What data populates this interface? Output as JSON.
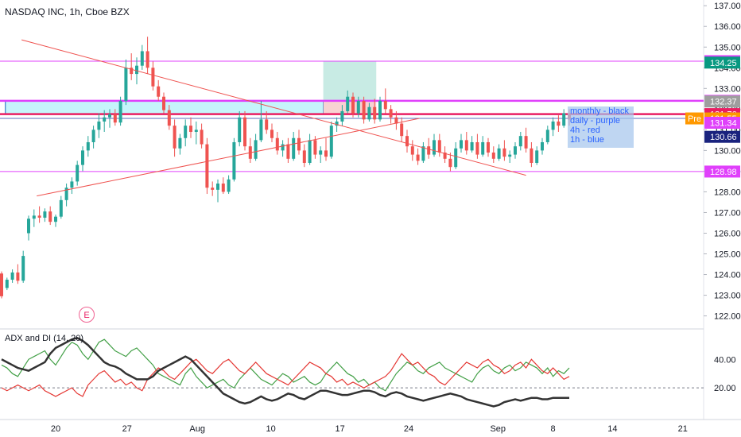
{
  "header": {
    "symbol_title": "NASDAQ INC, 1h, Cboe BZX"
  },
  "indicator": {
    "title": "ADX and DI (14, 20)"
  },
  "notes": {
    "lines": [
      "monthly - black",
      "daily - purple",
      "4h - red",
      "1h - blue"
    ]
  },
  "earnings_marker": "E",
  "colors": {
    "up": "#26a69a",
    "down": "#ef5350",
    "magenta": "#e040fb",
    "blue_line": "#5c6bc0",
    "trend": "#ef5350",
    "zone": "#b3f0fa",
    "target": "#c8ebe4",
    "stop": "#f8d2d2",
    "di_plus": "#43a047",
    "di_minus": "#e53935",
    "adx": "#333333"
  },
  "chart_data": {
    "type": "candlestick",
    "y_axis": {
      "range": [
        121.6,
        137.2
      ],
      "ticks": [
        "122.00",
        "123.00",
        "124.00",
        "125.00",
        "126.00",
        "127.00",
        "128.00",
        "129.00",
        "130.00",
        "131.00",
        "132.00",
        "133.00",
        "134.00",
        "135.00",
        "136.00",
        "137.00"
      ]
    },
    "x_axis": {
      "ticks": [
        "20",
        "27",
        "Aug",
        "10",
        "17",
        "24",
        "Sep",
        "8",
        "14",
        "21"
      ]
    },
    "price_labels": [
      {
        "value": "134.32",
        "color": "#e040fb"
      },
      {
        "value": "134.25",
        "color": "#089981"
      },
      {
        "value": "132.40",
        "color": "#e040fb"
      },
      {
        "value": "132.37",
        "color": "#9e9e9e"
      },
      {
        "value": "131.76",
        "color": "#e91e63"
      },
      {
        "value": "131.55",
        "color": "#089981"
      },
      {
        "value": "131.55",
        "color": "#ff9800",
        "prefix": "Pre"
      },
      {
        "value": "131.34",
        "color": "#e040fb"
      },
      {
        "value": "130.66",
        "color": "#1a237e"
      },
      {
        "value": "128.98",
        "color": "#e040fb"
      }
    ],
    "horizontal_levels": [
      {
        "price": 134.32,
        "color": "#e040fb",
        "width": 1
      },
      {
        "price": 132.4,
        "color": "#e040fb",
        "width": 2.5
      },
      {
        "price": 131.76,
        "color": "#e91e63",
        "width": 2.5
      },
      {
        "price": 131.55,
        "color": "#5c6bc0",
        "width": 1
      },
      {
        "price": 128.98,
        "color": "#e040fb",
        "width": 1
      }
    ],
    "zone": {
      "from_time": 0.7,
      "to_time": 59.5,
      "high": 132.4,
      "low": 131.76
    },
    "position": {
      "from_time": 59.5,
      "to_time": 69.3,
      "target": 134.32,
      "entry": 132.37,
      "stop": 131.76,
      "current": 131.55
    },
    "trendlines": [
      {
        "from": [
          3.7,
          135.35
        ],
        "to": [
          97,
          128.8
        ]
      },
      {
        "from": [
          6.5,
          127.8
        ],
        "to": [
          77.3,
          131.55
        ]
      }
    ],
    "candles": [
      [
        124.05,
        124.15,
        122.85,
        122.95
      ],
      [
        123.35,
        123.85,
        123.25,
        123.75
      ],
      [
        123.75,
        124.25,
        123.6,
        124.1
      ],
      [
        124.1,
        124.5,
        123.55,
        123.7
      ],
      [
        123.7,
        125.15,
        123.6,
        124.9
      ],
      [
        126.0,
        126.85,
        125.65,
        126.7
      ],
      [
        126.7,
        127.15,
        126.3,
        126.85
      ],
      [
        126.85,
        127.3,
        126.5,
        126.75
      ],
      [
        126.75,
        127.2,
        126.55,
        127.05
      ],
      [
        127.05,
        127.3,
        126.4,
        126.55
      ],
      [
        126.55,
        126.9,
        126.3,
        126.8
      ],
      [
        126.8,
        127.8,
        126.7,
        127.6
      ],
      [
        127.6,
        128.4,
        127.3,
        128.2
      ],
      [
        128.2,
        128.7,
        127.9,
        128.5
      ],
      [
        128.5,
        129.5,
        128.3,
        129.3
      ],
      [
        129.3,
        130.2,
        129.0,
        130.0
      ],
      [
        130.0,
        130.7,
        129.7,
        130.4
      ],
      [
        130.4,
        131.2,
        130.1,
        131.0
      ],
      [
        131.0,
        131.8,
        130.6,
        131.4
      ],
      [
        131.4,
        131.95,
        130.9,
        131.6
      ],
      [
        131.6,
        132.0,
        131.1,
        131.75
      ],
      [
        131.75,
        132.0,
        131.2,
        131.35
      ],
      [
        131.35,
        132.6,
        131.2,
        132.4
      ],
      [
        132.4,
        134.4,
        132.2,
        134.0
      ],
      [
        134.0,
        134.7,
        133.4,
        133.7
      ],
      [
        133.7,
        134.5,
        133.2,
        134.1
      ],
      [
        134.1,
        135.1,
        133.9,
        134.8
      ],
      [
        134.8,
        135.5,
        133.7,
        134.0
      ],
      [
        134.0,
        134.3,
        132.9,
        133.1
      ],
      [
        133.1,
        133.4,
        132.4,
        132.6
      ],
      [
        132.6,
        132.8,
        131.8,
        131.95
      ],
      [
        131.95,
        132.2,
        131.0,
        131.2
      ],
      [
        131.2,
        131.5,
        129.7,
        130.1
      ],
      [
        130.1,
        130.8,
        129.8,
        130.6
      ],
      [
        130.6,
        131.5,
        130.2,
        131.2
      ],
      [
        131.2,
        131.6,
        130.6,
        130.9
      ],
      [
        130.9,
        131.4,
        130.3,
        131.0
      ],
      [
        131.0,
        131.3,
        130.1,
        130.3
      ],
      [
        130.3,
        130.6,
        127.9,
        128.2
      ],
      [
        128.2,
        128.5,
        127.8,
        128.1
      ],
      [
        128.1,
        128.6,
        127.5,
        128.4
      ],
      [
        128.4,
        128.7,
        127.9,
        128.0
      ],
      [
        128.0,
        128.8,
        127.9,
        128.6
      ],
      [
        128.6,
        130.6,
        128.5,
        130.4
      ],
      [
        130.4,
        131.9,
        130.2,
        131.6
      ],
      [
        131.6,
        131.9,
        130.0,
        130.2
      ],
      [
        130.2,
        130.6,
        129.4,
        129.6
      ],
      [
        129.6,
        130.8,
        129.5,
        130.5
      ],
      [
        130.5,
        132.4,
        130.4,
        131.5
      ],
      [
        131.5,
        131.9,
        130.8,
        131.0
      ],
      [
        131.0,
        131.3,
        130.4,
        130.6
      ],
      [
        130.6,
        130.9,
        129.8,
        130.0
      ],
      [
        130.0,
        130.5,
        129.7,
        130.3
      ],
      [
        130.3,
        130.6,
        129.4,
        129.6
      ],
      [
        129.6,
        130.9,
        129.5,
        130.6
      ],
      [
        130.6,
        131.0,
        129.8,
        130.0
      ],
      [
        130.0,
        130.3,
        129.2,
        129.4
      ],
      [
        129.4,
        130.8,
        129.3,
        130.5
      ],
      [
        130.5,
        130.7,
        129.6,
        129.8
      ],
      [
        129.8,
        130.2,
        129.4,
        130.0
      ],
      [
        130.0,
        130.6,
        129.5,
        129.7
      ],
      [
        129.7,
        131.4,
        129.6,
        131.2
      ],
      [
        131.2,
        131.6,
        130.9,
        131.4
      ],
      [
        131.4,
        132.2,
        131.2,
        131.9
      ],
      [
        131.9,
        132.9,
        131.8,
        132.6
      ],
      [
        132.6,
        132.8,
        131.6,
        131.8
      ],
      [
        131.8,
        132.6,
        131.6,
        132.4
      ],
      [
        132.4,
        132.6,
        131.3,
        131.5
      ],
      [
        131.5,
        132.3,
        131.4,
        132.1
      ],
      [
        132.1,
        132.5,
        131.3,
        131.5
      ],
      [
        131.5,
        132.6,
        131.4,
        132.4
      ],
      [
        132.4,
        133.0,
        131.8,
        132.0
      ],
      [
        132.0,
        132.2,
        131.3,
        131.6
      ],
      [
        131.6,
        131.9,
        131.0,
        131.3
      ],
      [
        131.3,
        131.6,
        130.4,
        130.7
      ],
      [
        130.7,
        131.0,
        129.9,
        130.2
      ],
      [
        130.2,
        130.5,
        129.5,
        129.8
      ],
      [
        129.8,
        130.1,
        129.3,
        129.5
      ],
      [
        129.5,
        130.4,
        129.4,
        130.2
      ],
      [
        130.2,
        130.6,
        129.6,
        129.8
      ],
      [
        129.8,
        130.8,
        129.7,
        130.5
      ],
      [
        130.5,
        130.8,
        129.7,
        129.9
      ],
      [
        129.9,
        130.2,
        129.4,
        129.6
      ],
      [
        129.6,
        129.9,
        129.0,
        129.2
      ],
      [
        129.2,
        130.4,
        129.1,
        130.1
      ],
      [
        130.1,
        130.8,
        129.9,
        130.5
      ],
      [
        130.5,
        130.9,
        129.8,
        130.0
      ],
      [
        130.0,
        130.7,
        129.9,
        130.4
      ],
      [
        130.4,
        130.8,
        129.6,
        129.8
      ],
      [
        129.8,
        130.7,
        129.7,
        130.4
      ],
      [
        130.4,
        130.6,
        129.7,
        129.9
      ],
      [
        129.9,
        130.2,
        129.4,
        129.6
      ],
      [
        129.6,
        130.3,
        129.5,
        130.1
      ],
      [
        130.1,
        130.5,
        129.5,
        129.7
      ],
      [
        129.7,
        130.0,
        129.4,
        129.8
      ],
      [
        129.8,
        130.4,
        129.6,
        130.2
      ],
      [
        130.2,
        130.9,
        130.0,
        130.7
      ],
      [
        130.7,
        131.1,
        129.9,
        130.1
      ],
      [
        130.1,
        130.4,
        129.2,
        129.4
      ],
      [
        129.4,
        130.2,
        129.3,
        130.0
      ],
      [
        130.0,
        130.6,
        129.8,
        130.4
      ],
      [
        130.4,
        131.2,
        130.3,
        131.0
      ],
      [
        131.0,
        131.6,
        130.7,
        131.4
      ],
      [
        131.4,
        131.7,
        130.9,
        131.2
      ],
      [
        131.2,
        132.0,
        131.1,
        131.8
      ],
      [
        131.8,
        132.0,
        131.2,
        131.5
      ]
    ],
    "adx_di": {
      "y_range": [
        0,
        58
      ],
      "reference_level": 20,
      "ticks": [
        "20.00",
        "40.00"
      ],
      "di_plus": [
        36,
        34,
        30,
        28,
        34,
        40,
        42,
        44,
        46,
        40,
        36,
        42,
        48,
        52,
        50,
        44,
        40,
        46,
        52,
        54,
        50,
        46,
        44,
        42,
        46,
        48,
        44,
        40,
        36,
        30,
        28,
        26,
        24,
        22,
        30,
        34,
        28,
        24,
        20,
        22,
        24,
        26,
        22,
        20,
        26,
        30,
        34,
        30,
        26,
        24,
        22,
        26,
        30,
        28,
        24,
        26,
        28,
        24,
        22,
        24,
        30,
        34,
        38,
        34,
        30,
        28,
        24,
        26,
        22,
        24,
        20,
        18,
        24,
        30,
        34,
        38,
        36,
        32,
        30,
        34,
        36,
        38,
        34,
        32,
        30,
        28,
        26,
        24,
        30,
        34,
        36,
        32,
        30,
        34,
        36,
        32,
        34,
        38,
        36,
        34,
        30,
        34,
        28,
        32,
        30,
        34
      ],
      "di_minus": [
        20,
        18,
        20,
        22,
        20,
        18,
        20,
        22,
        18,
        16,
        14,
        16,
        18,
        20,
        16,
        14,
        22,
        26,
        30,
        32,
        28,
        24,
        26,
        22,
        24,
        20,
        18,
        26,
        30,
        34,
        32,
        28,
        26,
        30,
        34,
        38,
        40,
        36,
        32,
        30,
        34,
        38,
        40,
        36,
        32,
        30,
        34,
        38,
        34,
        30,
        28,
        26,
        24,
        22,
        26,
        30,
        34,
        38,
        36,
        34,
        30,
        28,
        24,
        26,
        22,
        24,
        22,
        20,
        22,
        24,
        26,
        28,
        32,
        38,
        44,
        40,
        36,
        38,
        34,
        30,
        28,
        24,
        22,
        26,
        30,
        34,
        38,
        36,
        34,
        38,
        40,
        36,
        34,
        30,
        32,
        36,
        38,
        34,
        40,
        36,
        32,
        30,
        34,
        30,
        26,
        28
      ],
      "adx": [
        40,
        38,
        36,
        34,
        33,
        32,
        34,
        36,
        38,
        44,
        48,
        50,
        52,
        54,
        55,
        53,
        50,
        46,
        42,
        38,
        36,
        35,
        33,
        30,
        28,
        26,
        26,
        26,
        28,
        32,
        34,
        36,
        38,
        40,
        42,
        40,
        36,
        32,
        28,
        24,
        20,
        16,
        14,
        12,
        10,
        9,
        10,
        12,
        14,
        12,
        11,
        12,
        14,
        16,
        15,
        13,
        12,
        14,
        16,
        18,
        18,
        17,
        16,
        15,
        15,
        16,
        17,
        18,
        18,
        17,
        15,
        14,
        16,
        17,
        16,
        14,
        13,
        12,
        11,
        12,
        13,
        14,
        15,
        16,
        15,
        14,
        12,
        11,
        10,
        9,
        8,
        7,
        8,
        10,
        11,
        12,
        11,
        12,
        13,
        13,
        12,
        12,
        13,
        13,
        13,
        13
      ]
    }
  }
}
